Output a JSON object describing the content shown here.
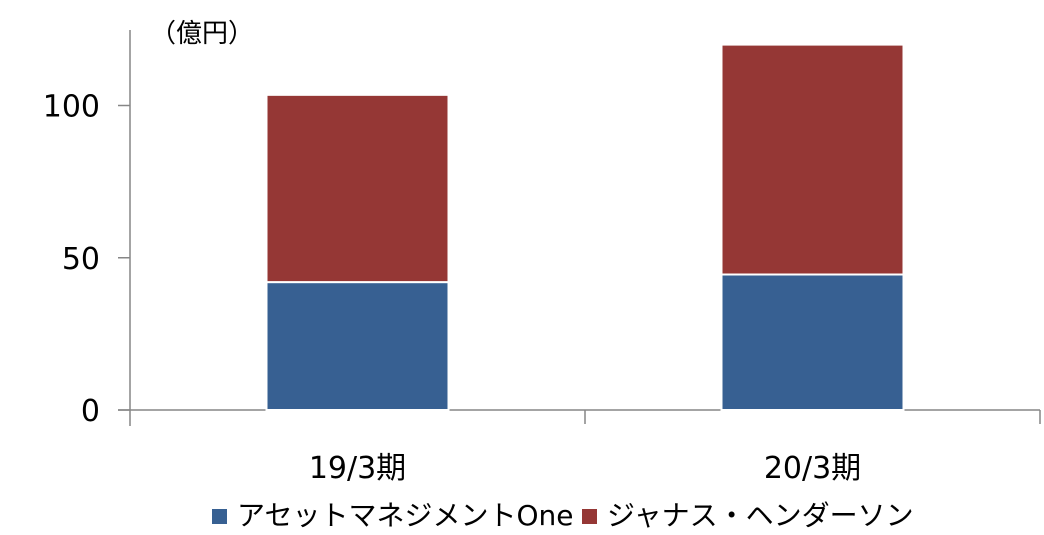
{
  "chart_data": {
    "type": "bar",
    "stacked": true,
    "unit_label": "（億円）",
    "categories": [
      "19/3期",
      "20/3期"
    ],
    "series": [
      {
        "name": "アセットマネジメントOne",
        "values": [
          42,
          44.5
        ],
        "color": "#376092"
      },
      {
        "name": "ジャナス・ヘンダーソン",
        "values": [
          61.5,
          75.5
        ],
        "color": "#953735"
      }
    ],
    "y_ticks": [
      0,
      50,
      100
    ],
    "ylim": [
      0,
      123
    ],
    "grid": false,
    "legend_position": "bottom"
  }
}
